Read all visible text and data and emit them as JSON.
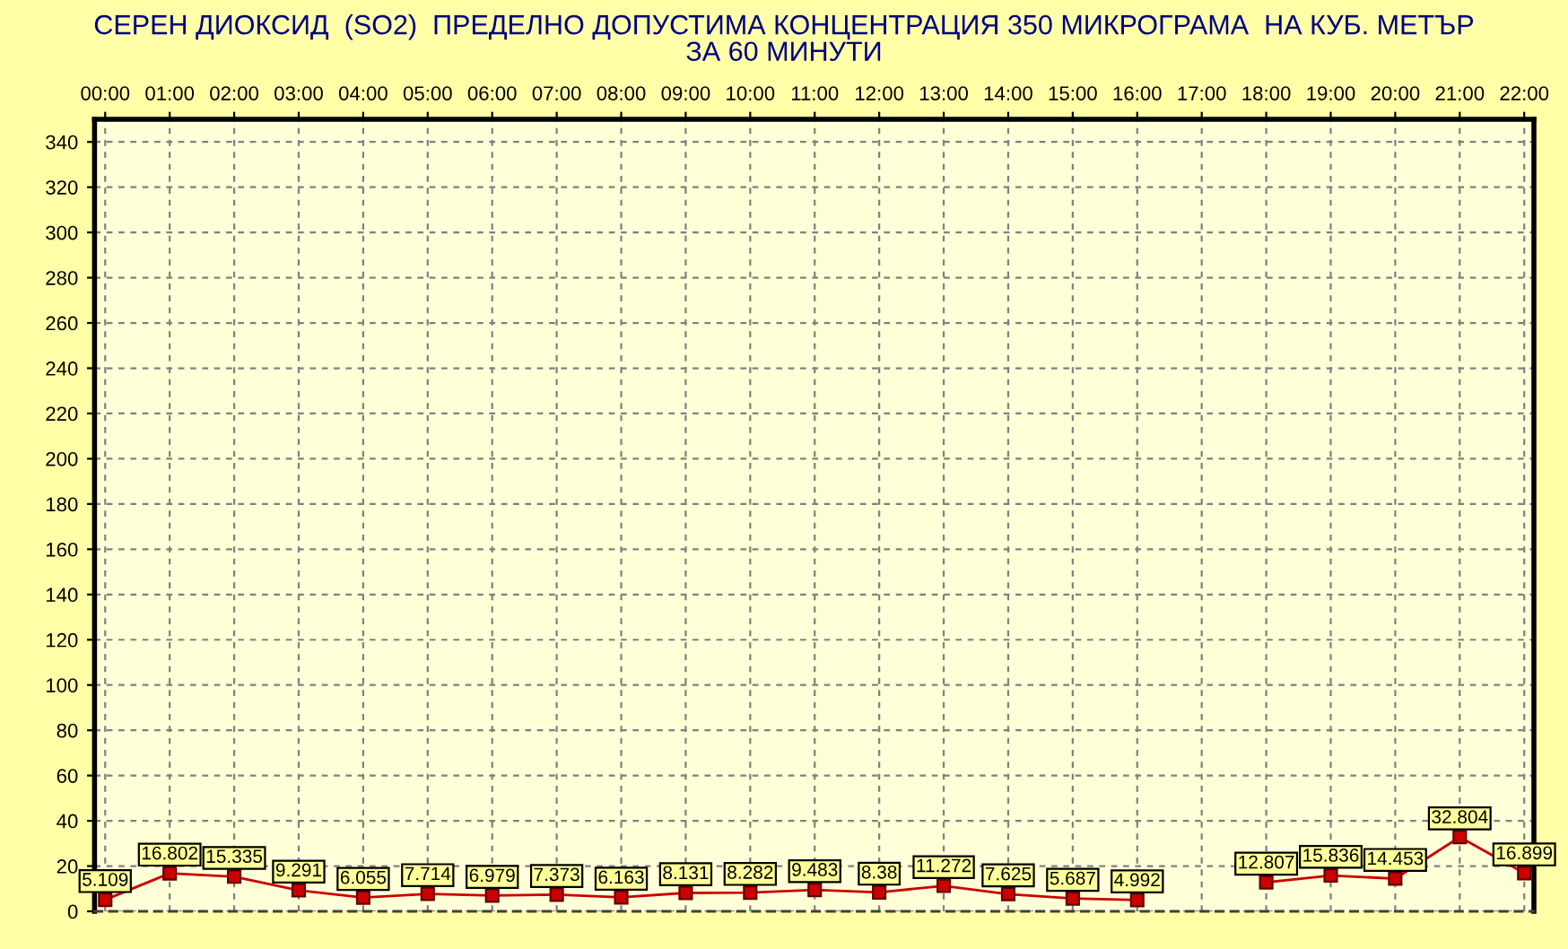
{
  "chart_data": {
    "type": "line",
    "title": "СЕРЕН ДИОКСИД  (SO2)  ПРЕДЕЛНО ДОПУСТИМА КОНЦЕНТРАЦИЯ 350 МИКРОГРАМА  НА КУБ. МЕТЪР\nЗА 60 МИНУТИ",
    "categories": [
      "00:00",
      "01:00",
      "02:00",
      "03:00",
      "04:00",
      "05:00",
      "06:00",
      "07:00",
      "08:00",
      "09:00",
      "10:00",
      "11:00",
      "12:00",
      "13:00",
      "14:00",
      "15:00",
      "16:00",
      "17:00",
      "18:00",
      "19:00",
      "20:00",
      "21:00",
      "22:00"
    ],
    "series": [
      {
        "color": "#cc0000",
        "values": [
          5.109,
          16.802,
          15.335,
          9.291,
          6.055,
          7.714,
          6.979,
          7.373,
          6.163,
          8.131,
          8.282,
          9.483,
          8.38,
          11.272,
          7.625,
          5.687,
          4.992,
          null,
          12.807,
          15.836,
          14.453,
          32.804,
          16.899
        ]
      }
    ],
    "ylim": [
      0,
      350
    ],
    "yticks": [
      0,
      20,
      40,
      60,
      80,
      100,
      120,
      140,
      160,
      180,
      200,
      220,
      240,
      260,
      280,
      300,
      320,
      340
    ],
    "grid": true,
    "marker": "square",
    "line_style": "solid",
    "data_labels": true
  }
}
